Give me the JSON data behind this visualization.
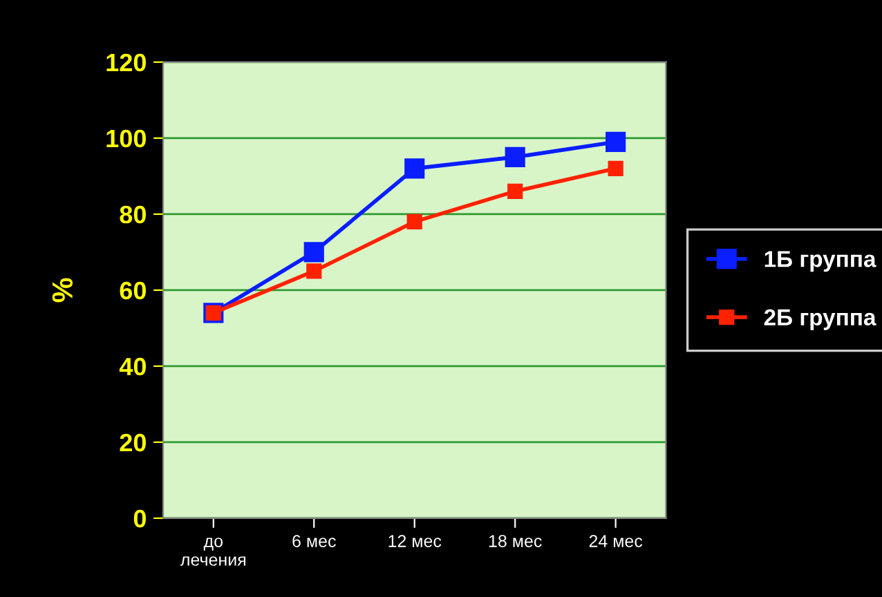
{
  "chart_data": {
    "type": "line",
    "ylabel": "%",
    "categories": [
      "до\nлечения",
      "6 мес",
      "12 мес",
      "18 мес",
      "24 мес"
    ],
    "series": [
      {
        "name": "1Б группа",
        "color": "#0a1eff",
        "values": [
          54,
          70,
          92,
          95,
          99
        ]
      },
      {
        "name": "2Б группа",
        "color": "#ff2200",
        "values": [
          54,
          65,
          78,
          86,
          92
        ]
      }
    ],
    "ylim": [
      0,
      120
    ],
    "yticks": [
      0,
      20,
      40,
      60,
      80,
      100,
      120
    ],
    "grid": "y",
    "legend": "right",
    "marker": "square",
    "line_style": "solid"
  }
}
